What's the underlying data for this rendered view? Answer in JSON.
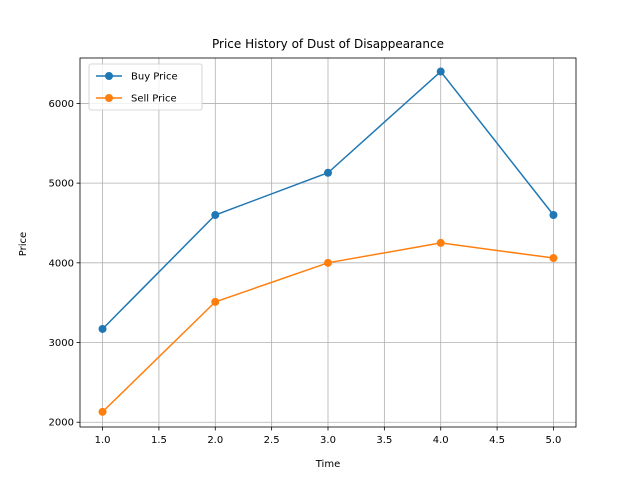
{
  "chart_data": {
    "type": "line",
    "title": "Price History of Dust of Disappearance",
    "xlabel": "Time",
    "ylabel": "Price",
    "x": [
      1.0,
      2.0,
      3.0,
      4.0,
      5.0
    ],
    "xlim": [
      0.8,
      5.2
    ],
    "ylim": [
      1940,
      6570
    ],
    "xticks": [
      1.0,
      1.5,
      2.0,
      2.5,
      3.0,
      3.5,
      4.0,
      4.5,
      5.0
    ],
    "xtick_labels": [
      "1.0",
      "1.5",
      "2.0",
      "2.5",
      "3.0",
      "3.5",
      "4.0",
      "4.5",
      "5.0"
    ],
    "yticks": [
      2000,
      3000,
      4000,
      5000,
      6000
    ],
    "ytick_labels": [
      "2000",
      "3000",
      "4000",
      "5000",
      "6000"
    ],
    "grid": true,
    "legend_position": "top-left",
    "series": [
      {
        "name": "Buy Price",
        "color": "#1f77b4",
        "marker": "circle",
        "values": [
          3170,
          4600,
          5130,
          6400,
          4600
        ]
      },
      {
        "name": "Sell Price",
        "color": "#ff7f0e",
        "marker": "circle",
        "values": [
          2130,
          3510,
          4000,
          4250,
          4060
        ]
      }
    ]
  }
}
